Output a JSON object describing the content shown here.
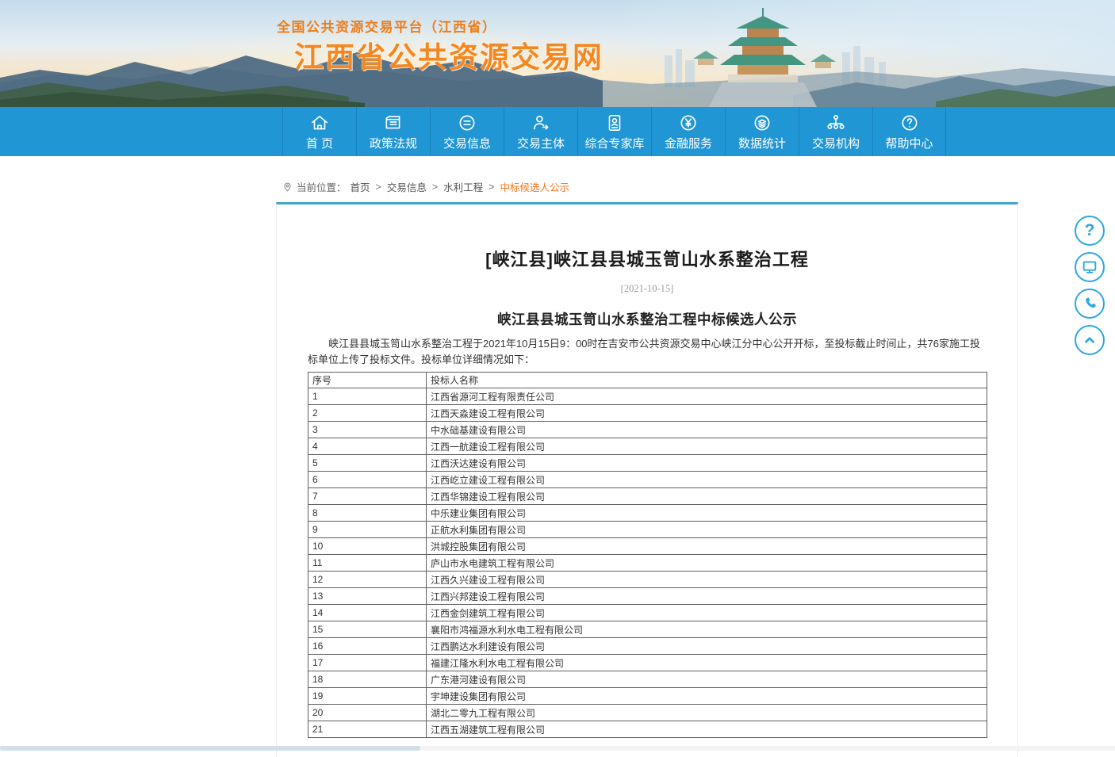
{
  "banner": {
    "platform_label": "全国公共资源交易平台（江西省）",
    "site_title": "江西省公共资源交易网"
  },
  "nav": {
    "items": [
      {
        "label": "首 页",
        "icon": "home"
      },
      {
        "label": "政策法规",
        "icon": "folder"
      },
      {
        "label": "交易信息",
        "icon": "info-circle"
      },
      {
        "label": "交易主体",
        "icon": "user-arrow"
      },
      {
        "label": "综合专家库",
        "icon": "id-card"
      },
      {
        "label": "金融服务",
        "icon": "yuan-circle"
      },
      {
        "label": "数据统计",
        "icon": "layers-circle"
      },
      {
        "label": "交易机构",
        "icon": "org-chart"
      },
      {
        "label": "帮助中心",
        "icon": "question-circle"
      }
    ]
  },
  "breadcrumb": {
    "prefix": "当前位置：",
    "separator": ">",
    "items": [
      "首页",
      "交易信息",
      "水利工程"
    ],
    "current": "中标候选人公示"
  },
  "article": {
    "title": "[峡江县]峡江县县城玉笥山水系整治工程",
    "date": "[2021-10-15]",
    "subtitle": "峡江县县城玉笥山水系整治工程中标候选人公示",
    "body": "峡江县县城玉笥山水系整治工程于2021年10月15日9：00时在吉安市公共资源交易中心峡江分中心公开开标，至投标截止时间止，共76家施工投标单位上传了投标文件。投标单位详细情况如下："
  },
  "table": {
    "headers": [
      "序号",
      "投标人名称"
    ],
    "rows": [
      [
        "1",
        "江西省源河工程有限责任公司"
      ],
      [
        "2",
        "江西天淼建设工程有限公司"
      ],
      [
        "3",
        "中水础基建设有限公司"
      ],
      [
        "4",
        "江西一航建设工程有限公司"
      ],
      [
        "5",
        "江西沃达建设有限公司"
      ],
      [
        "6",
        "江西屹立建设工程有限公司"
      ],
      [
        "7",
        "江西华锦建设工程有限公司"
      ],
      [
        "8",
        "中乐建业集团有限公司"
      ],
      [
        "9",
        "正航水利集团有限公司"
      ],
      [
        "10",
        "洪城控股集团有限公司"
      ],
      [
        "11",
        "庐山市水电建筑工程有限公司"
      ],
      [
        "12",
        "江西久兴建设工程有限公司"
      ],
      [
        "13",
        "江西兴邦建设工程有限公司"
      ],
      [
        "14",
        "江西金剑建筑工程有限公司"
      ],
      [
        "15",
        "襄阳市鸿福源水利水电工程有限公司"
      ],
      [
        "16",
        "江西鹏达水利建设有限公司"
      ],
      [
        "17",
        "福建江隆水利水电工程有限公司"
      ],
      [
        "18",
        "广东港河建设有限公司"
      ],
      [
        "19",
        "宇坤建设集团有限公司"
      ],
      [
        "20",
        "湖北二零九工程有限公司"
      ],
      [
        "21",
        "江西五湖建筑工程有限公司"
      ]
    ]
  },
  "floating_buttons": [
    {
      "icon": "question"
    },
    {
      "icon": "monitor"
    },
    {
      "icon": "phone"
    },
    {
      "icon": "chevron-up"
    }
  ],
  "colors": {
    "nav_blue": "#2196d4",
    "brand_orange": "#f6871f",
    "breadcrumb_active": "#ff7113",
    "button_blue": "#2ea7e0",
    "panel_top_border": "#44a5c9"
  }
}
